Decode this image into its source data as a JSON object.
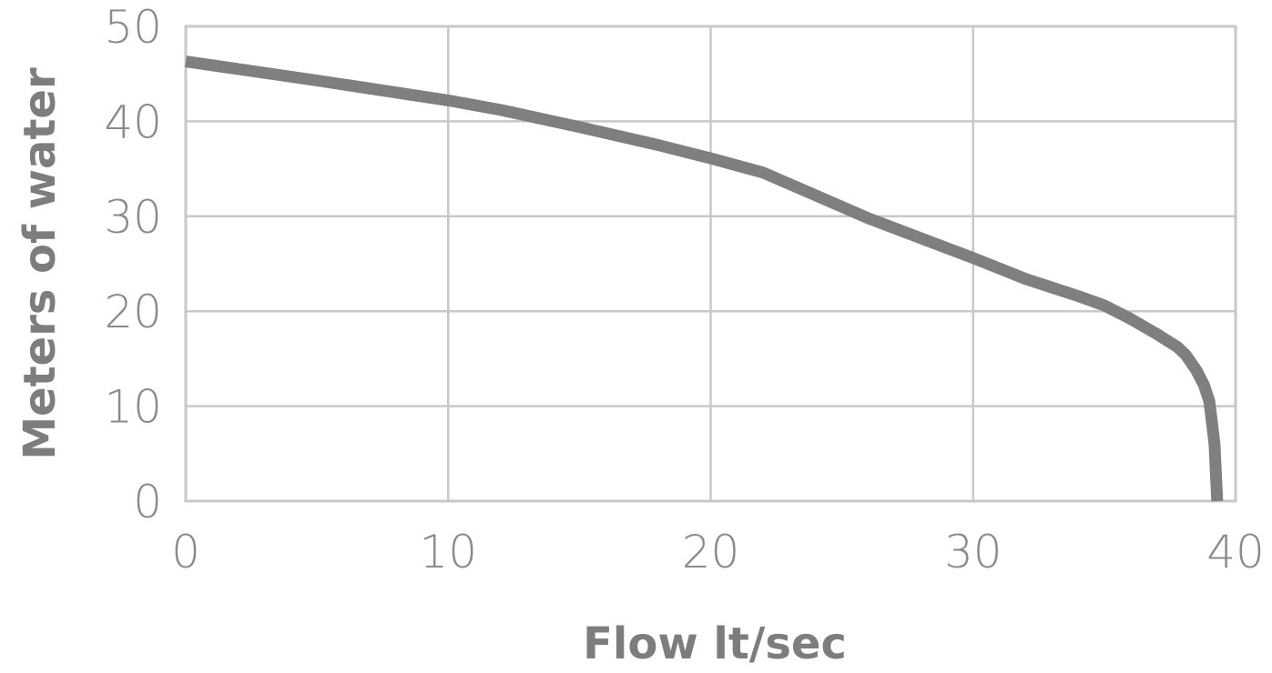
{
  "chart_data": {
    "type": "line",
    "title": "",
    "xlabel": "Flow lt/sec",
    "ylabel": "Meters of water",
    "xlim": [
      0,
      40
    ],
    "ylim": [
      0,
      50
    ],
    "x_ticks": [
      "0",
      "10",
      "20",
      "30",
      "40"
    ],
    "y_ticks": [
      "0",
      "10",
      "20",
      "30",
      "40",
      "50"
    ],
    "grid": true,
    "series": [
      {
        "color": "#7f7f7f",
        "x": [
          0,
          5,
          10,
          12,
          15,
          18,
          20,
          22,
          24,
          26,
          28,
          30,
          32,
          34,
          35,
          36,
          37,
          37.8,
          38.1,
          38.5,
          38.8,
          39.0,
          39.2,
          39.3
        ],
        "y": [
          46.3,
          44.3,
          42.2,
          41.2,
          39.4,
          37.5,
          36.1,
          34.6,
          32.2,
          29.8,
          27.7,
          25.6,
          23.4,
          21.6,
          20.6,
          19.2,
          17.6,
          16.2,
          15.4,
          13.8,
          12.2,
          10.5,
          6,
          0
        ]
      }
    ]
  }
}
